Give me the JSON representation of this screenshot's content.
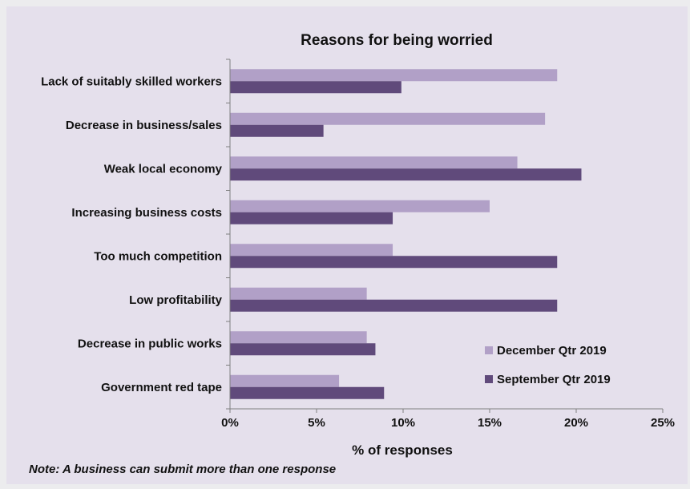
{
  "chart_data": {
    "type": "bar",
    "orientation": "horizontal",
    "title": "Reasons for being worried",
    "xlabel": "% of responses",
    "ylabel": "",
    "xlim": [
      0,
      25
    ],
    "x_ticks": [
      "0%",
      "5%",
      "10%",
      "15%",
      "20%",
      "25%"
    ],
    "grid": false,
    "legend_position": "bottom-right",
    "categories": [
      "Lack of suitably skilled workers",
      "Decrease in business/sales",
      "Weak local economy",
      "Increasing business costs",
      "Too much competition",
      "Low profitability",
      "Decrease in public works",
      "Government red tape"
    ],
    "series": [
      {
        "name": "December Qtr 2019",
        "color": "#B1A0C7",
        "values": [
          18.9,
          18.2,
          16.6,
          15.0,
          9.4,
          7.9,
          7.9,
          6.3
        ]
      },
      {
        "name": "September Qtr 2019",
        "color": "#604A7B",
        "values": [
          9.9,
          5.4,
          20.3,
          9.4,
          18.9,
          18.9,
          8.4,
          8.9
        ]
      }
    ],
    "note": "Note: A business can submit more than one response"
  }
}
